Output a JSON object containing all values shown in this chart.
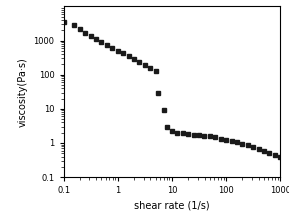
{
  "title": "",
  "xlabel": "shear rate (1/s)",
  "ylabel": "viscosity(Pa·s)",
  "xlim": [
    0.1,
    1000
  ],
  "ylim": [
    0.1,
    10000
  ],
  "marker": "s",
  "marker_color": "#1a1a1a",
  "marker_size": 3,
  "x_data": [
    0.1,
    0.158,
    0.2,
    0.251,
    0.316,
    0.398,
    0.5,
    0.631,
    0.794,
    1.0,
    1.26,
    1.585,
    2.0,
    2.512,
    3.162,
    3.981,
    5.012,
    5.5,
    7.0,
    8.0,
    10.0,
    12.59,
    15.85,
    19.95,
    25.12,
    31.62,
    39.81,
    50.12,
    63.1,
    79.43,
    100.0,
    125.9,
    158.5,
    199.5,
    251.2,
    316.2,
    398.1,
    501.2,
    631.0,
    794.3,
    1000.0
  ],
  "y_data": [
    3500,
    2800,
    2200,
    1700,
    1350,
    1100,
    900,
    750,
    620,
    500,
    420,
    350,
    280,
    240,
    190,
    155,
    125,
    30,
    9.0,
    3.0,
    2.2,
    2.0,
    1.9,
    1.8,
    1.75,
    1.7,
    1.6,
    1.55,
    1.45,
    1.35,
    1.25,
    1.15,
    1.05,
    0.95,
    0.85,
    0.75,
    0.68,
    0.6,
    0.52,
    0.45,
    0.38
  ],
  "xticks": [
    0.1,
    1,
    10,
    100,
    1000
  ],
  "xticklabels": [
    "0.1",
    "1",
    "10",
    "100",
    "1000"
  ],
  "yticks": [
    0.1,
    1,
    10,
    100,
    1000
  ],
  "yticklabels": [
    "0.1",
    "1",
    "10",
    "100",
    "1000"
  ],
  "label_fontsize": 7,
  "tick_fontsize": 6
}
